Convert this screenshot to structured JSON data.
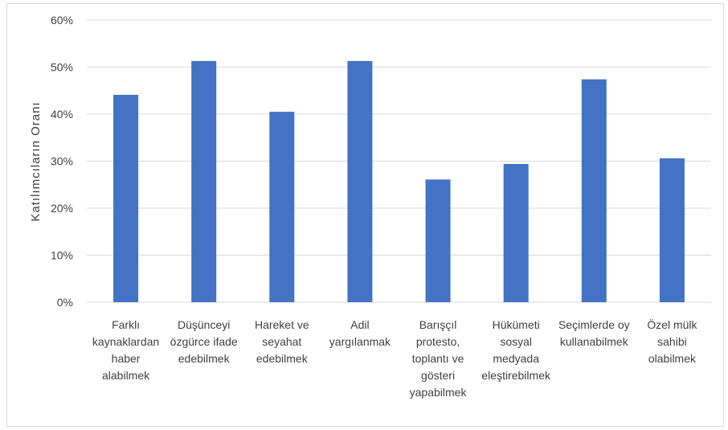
{
  "chart_data": {
    "type": "bar",
    "title": "",
    "xlabel": "",
    "ylabel": "Katılımcıların Oranı",
    "ylim": [
      0,
      60
    ],
    "ytick_values": [
      0,
      10,
      20,
      30,
      40,
      50,
      60
    ],
    "ytick_labels": [
      "0%",
      "10%",
      "20%",
      "30%",
      "40%",
      "50%",
      "60%"
    ],
    "grid": true,
    "legend": "none",
    "bar_color": "#4472C4",
    "grid_color": "#d9d9d9",
    "categories": [
      "Farklı kaynaklardan haber alabilmek",
      "Düşünceyi özgürce ifade edebilmek",
      "Hareket ve seyahat edebilmek",
      "Adil yargılanmak",
      "Barışçıl protesto, toplantı ve gösteri yapabilmek",
      "Hükümeti sosyal medyada eleştirebilmek",
      "Seçimlerde oy kullanabilmek",
      "Özel mülk sahibi olabilmek"
    ],
    "category_lines": [
      [
        "Farklı",
        "kaynaklardan",
        "haber",
        "alabilmek"
      ],
      [
        "Düşünceyi",
        "özgürce ifade",
        "edebilmek"
      ],
      [
        "Hareket ve",
        "seyahat",
        "edebilmek"
      ],
      [
        "Adil",
        "yargılanmak"
      ],
      [
        "Barışçıl",
        "protesto,",
        "toplantı ve",
        "gösteri",
        "yapabilmek"
      ],
      [
        "Hükümeti",
        "sosyal",
        "medyada",
        "eleştirebilmek"
      ],
      [
        "Seçimlerde oy",
        "kullanabilmek"
      ],
      [
        "Özel mülk",
        "sahibi",
        "olabilmek"
      ]
    ],
    "values": [
      44.1,
      51.3,
      40.5,
      51.3,
      26.1,
      29.4,
      47.4,
      30.6
    ]
  }
}
